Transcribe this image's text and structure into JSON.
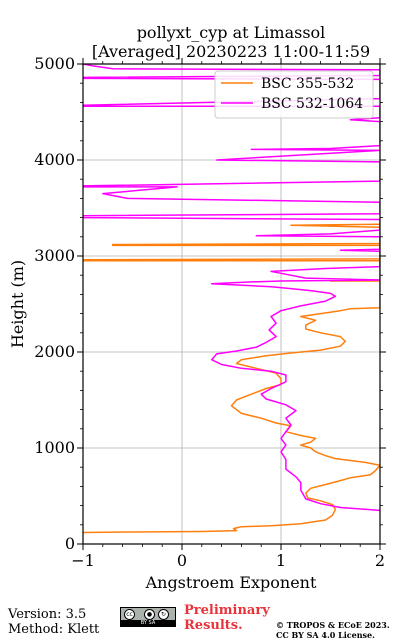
{
  "chart_data": {
    "type": "line",
    "title_line1": "pollyxt_cyp at Limassol",
    "title_line2": "[Averaged] 20230223 11:00-11:59",
    "xlabel": "Angstroem Exponent",
    "ylabel": "Height (m)",
    "xlim": [
      -1,
      2
    ],
    "ylim": [
      0,
      5000
    ],
    "x_ticks": [
      -1,
      0,
      1,
      2
    ],
    "x_tick_labels": [
      "−1",
      "0",
      "1",
      "2"
    ],
    "y_ticks": [
      0,
      1000,
      2000,
      3000,
      4000,
      5000
    ],
    "y_tick_labels": [
      "0",
      "1000",
      "2000",
      "3000",
      "4000",
      "5000"
    ],
    "grid": true,
    "legend_position": "top-right",
    "series": [
      {
        "name": "BSC 355-532",
        "color": "#ff7f0e",
        "points": [
          [
            -1.0,
            120
          ],
          [
            -0.5,
            125
          ],
          [
            0.2,
            130
          ],
          [
            0.55,
            140
          ],
          [
            0.52,
            160
          ],
          [
            0.6,
            180
          ],
          [
            0.9,
            190
          ],
          [
            1.2,
            210
          ],
          [
            1.45,
            250
          ],
          [
            1.52,
            300
          ],
          [
            1.55,
            360
          ],
          [
            1.52,
            410
          ],
          [
            1.4,
            450
          ],
          [
            1.27,
            480
          ],
          [
            1.25,
            530
          ],
          [
            1.3,
            580
          ],
          [
            1.45,
            620
          ],
          [
            1.6,
            660
          ],
          [
            1.7,
            690
          ],
          [
            1.9,
            720
          ],
          [
            1.95,
            760
          ],
          [
            2.0,
            820
          ],
          [
            1.85,
            850
          ],
          [
            1.7,
            870
          ],
          [
            1.55,
            890
          ],
          [
            1.45,
            920
          ],
          [
            1.35,
            960
          ],
          [
            1.3,
            1000
          ],
          [
            1.2,
            1030
          ],
          [
            1.3,
            1060
          ],
          [
            1.35,
            1100
          ],
          [
            1.2,
            1130
          ],
          [
            1.05,
            1170
          ],
          [
            1.1,
            1230
          ],
          [
            0.95,
            1260
          ],
          [
            0.8,
            1310
          ],
          [
            0.6,
            1360
          ],
          [
            0.5,
            1440
          ],
          [
            0.55,
            1500
          ],
          [
            0.7,
            1560
          ],
          [
            0.85,
            1620
          ],
          [
            1.0,
            1660
          ],
          [
            1.0,
            1720
          ],
          [
            0.95,
            1780
          ],
          [
            0.75,
            1830
          ],
          [
            0.55,
            1880
          ],
          [
            0.6,
            1920
          ],
          [
            0.85,
            1960
          ],
          [
            1.1,
            1990
          ],
          [
            1.4,
            2020
          ],
          [
            1.6,
            2060
          ],
          [
            1.65,
            2110
          ],
          [
            1.6,
            2160
          ],
          [
            1.4,
            2200
          ],
          [
            1.25,
            2240
          ],
          [
            1.25,
            2280
          ],
          [
            1.35,
            2330
          ],
          [
            1.2,
            2370
          ],
          [
            1.4,
            2400
          ],
          [
            1.6,
            2430
          ],
          [
            1.7,
            2450
          ],
          [
            2.0,
            2460
          ],
          [
            2.0,
            2740
          ],
          [
            1.5,
            2740
          ],
          [
            2.0,
            2750
          ],
          [
            2.0,
            2950
          ],
          [
            -1.0,
            2950
          ],
          [
            -1.0,
            2960
          ],
          [
            2.0,
            2970
          ],
          [
            2.0,
            3110
          ],
          [
            -0.7,
            3110
          ],
          [
            -0.7,
            3120
          ],
          [
            2.0,
            3130
          ],
          [
            2.0,
            3300
          ],
          [
            1.1,
            3320
          ],
          [
            2.0,
            3330
          ]
        ]
      },
      {
        "name": "BSC 532-1064",
        "color": "#ff00ff",
        "points": [
          [
            2.0,
            350
          ],
          [
            1.6,
            380
          ],
          [
            1.4,
            420
          ],
          [
            1.25,
            470
          ],
          [
            1.2,
            560
          ],
          [
            1.2,
            640
          ],
          [
            1.15,
            700
          ],
          [
            1.05,
            780
          ],
          [
            1.05,
            880
          ],
          [
            1.0,
            960
          ],
          [
            1.05,
            1030
          ],
          [
            1.0,
            1100
          ],
          [
            1.05,
            1170
          ],
          [
            1.1,
            1240
          ],
          [
            1.05,
            1310
          ],
          [
            1.15,
            1390
          ],
          [
            1.05,
            1450
          ],
          [
            0.95,
            1480
          ],
          [
            0.85,
            1510
          ],
          [
            0.8,
            1560
          ],
          [
            0.9,
            1620
          ],
          [
            1.05,
            1690
          ],
          [
            1.05,
            1760
          ],
          [
            0.9,
            1800
          ],
          [
            0.6,
            1830
          ],
          [
            0.4,
            1870
          ],
          [
            0.3,
            1920
          ],
          [
            0.35,
            1980
          ],
          [
            0.55,
            2010
          ],
          [
            0.75,
            2050
          ],
          [
            0.85,
            2100
          ],
          [
            0.95,
            2160
          ],
          [
            0.88,
            2230
          ],
          [
            0.95,
            2300
          ],
          [
            0.9,
            2370
          ],
          [
            1.0,
            2430
          ],
          [
            1.2,
            2480
          ],
          [
            1.45,
            2530
          ],
          [
            1.55,
            2580
          ],
          [
            1.5,
            2610
          ],
          [
            1.3,
            2640
          ],
          [
            1.1,
            2660
          ],
          [
            0.9,
            2680
          ],
          [
            0.3,
            2710
          ],
          [
            0.7,
            2730
          ],
          [
            1.0,
            2740
          ],
          [
            2.0,
            2750
          ],
          [
            1.25,
            2770
          ],
          [
            1.0,
            2820
          ],
          [
            0.9,
            2840
          ],
          [
            1.45,
            2870
          ],
          [
            2.0,
            2890
          ],
          [
            2.0,
            3050
          ],
          [
            1.6,
            3060
          ],
          [
            2.0,
            3070
          ],
          [
            2.0,
            3200
          ],
          [
            0.75,
            3210
          ],
          [
            1.5,
            3230
          ],
          [
            2.0,
            3270
          ],
          [
            2.0,
            3380
          ],
          [
            -1.0,
            3400
          ],
          [
            -1.0,
            3420
          ],
          [
            2.0,
            3440
          ],
          [
            2.0,
            3560
          ],
          [
            -0.55,
            3600
          ],
          [
            -0.8,
            3650
          ],
          [
            -0.05,
            3720
          ],
          [
            -1.0,
            3720
          ],
          [
            -1.0,
            3730
          ],
          [
            2.0,
            3780
          ],
          [
            2.0,
            3980
          ],
          [
            0.35,
            4000
          ],
          [
            2.0,
            4100
          ],
          [
            0.7,
            4110
          ],
          [
            1.5,
            4120
          ],
          [
            2.0,
            4150
          ],
          [
            2.0,
            4400
          ],
          [
            1.7,
            4420
          ],
          [
            2.0,
            4440
          ],
          [
            2.0,
            4560
          ],
          [
            -1.0,
            4560
          ],
          [
            -1.0,
            4570
          ],
          [
            2.0,
            4640
          ],
          [
            2.0,
            4840
          ],
          [
            -1.0,
            4850
          ],
          [
            -1.0,
            4860
          ],
          [
            2.0,
            4880
          ],
          [
            2.0,
            4940
          ],
          [
            -0.7,
            4950
          ],
          [
            -0.9,
            4980
          ],
          [
            -1.0,
            5000
          ]
        ]
      }
    ]
  },
  "footer": {
    "version": "Version: 3.5",
    "method": "Method: Klett",
    "preliminary_line1": "Preliminary",
    "preliminary_line2": "Results.",
    "license_line1": "© TROPOS & ECoE 2023.",
    "license_line2": "CC BY SA 4.0 License.",
    "cc_badge_text": "BY SA",
    "cc_icon": "cc-by-sa-license-icon"
  }
}
